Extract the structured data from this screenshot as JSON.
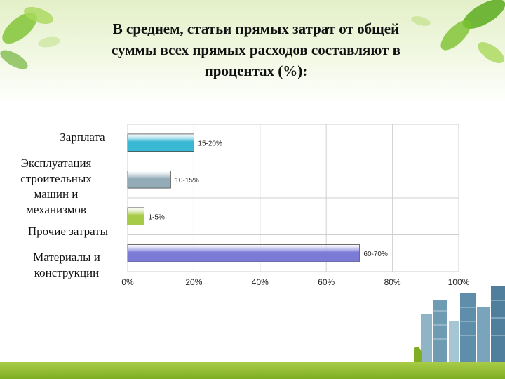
{
  "title": "В среднем, статьи прямых затрат от общей суммы всех прямых расходов составляют в процентах (%):",
  "title_lines": [
    "В среднем, статьи прямых затрат от общей",
    "суммы всех прямых расходов составляют в",
    "процентах (%):"
  ],
  "colors": {
    "bar_1": "#39b8d4",
    "bar_2": "#93acb8",
    "bar_3": "#a6cb47",
    "bar_4": "#7b7bd6",
    "grid": "#cfcfcf",
    "accent_green": "#8cbc2c"
  },
  "decor": {
    "leaves_left": "green-leaves-icon",
    "leaves_right": "green-leaves-icon",
    "buildings": "skyscrapers-icon"
  },
  "chart_data": {
    "type": "bar",
    "orientation": "horizontal",
    "categories": [
      "Зарплата",
      "Эксплуатация строительных машин и механизмов",
      "Прочие затраты",
      "Материалы и конструкции"
    ],
    "category_lines": [
      [
        "Зарплата"
      ],
      [
        "Эксплуатация",
        "строительных",
        "машин и",
        "механизмов"
      ],
      [
        "Прочие затраты"
      ],
      [
        "Материалы и",
        "конструкции"
      ]
    ],
    "values": [
      20,
      13,
      5,
      70
    ],
    "data_labels": [
      "15-20%",
      "10-15%",
      "1-5%",
      "60-70%"
    ],
    "x_ticks": [
      "0%",
      "20%",
      "40%",
      "60%",
      "80%",
      "100%"
    ],
    "xlim": [
      0,
      100
    ],
    "grid": true,
    "legend": "none"
  }
}
